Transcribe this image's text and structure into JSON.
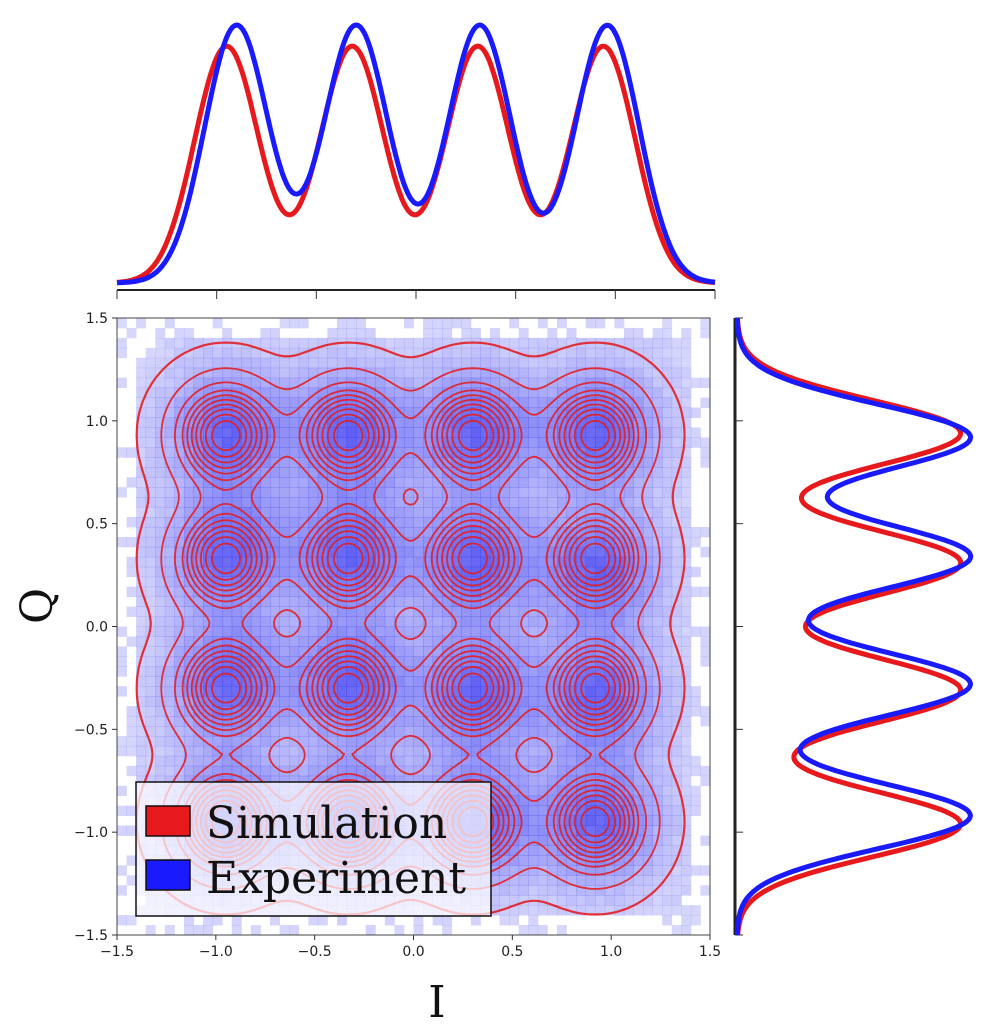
{
  "chart_data": {
    "type": "heatmap",
    "xlabel": "I",
    "ylabel": "Q",
    "xlim": [
      -1.5,
      1.5
    ],
    "ylim": [
      -1.5,
      1.5
    ],
    "x_ticks": [
      "−1.5",
      "−1.0",
      "−0.5",
      "0.0",
      "0.5",
      "1.0",
      "1.5"
    ],
    "y_ticks": [
      "−1.5",
      "−1.0",
      "−0.5",
      "0.0",
      "0.5",
      "1.0",
      "1.5"
    ],
    "tick_values": [
      -1.5,
      -1.0,
      -0.5,
      0.0,
      0.5,
      1.0,
      1.5
    ],
    "grid": false,
    "legend_position": "lower-left",
    "series": [
      {
        "name": "Simulation",
        "color": "#e8191d"
      },
      {
        "name": "Experiment",
        "color": "#1a1aff"
      }
    ],
    "constellation": {
      "experiment_peaks": [
        [
          -0.93,
          0.95
        ],
        [
          -0.31,
          0.95
        ],
        [
          0.32,
          0.95
        ],
        [
          0.94,
          0.95
        ],
        [
          -0.93,
          0.36
        ],
        [
          -0.31,
          0.36
        ],
        [
          0.32,
          0.32
        ],
        [
          0.94,
          0.28
        ],
        [
          -0.93,
          -0.27
        ],
        [
          -0.31,
          -0.27
        ],
        [
          0.32,
          -0.32
        ],
        [
          0.94,
          -0.34
        ],
        [
          -0.93,
          -0.95
        ],
        [
          -0.31,
          -0.95
        ],
        [
          0.32,
          -0.95
        ],
        [
          0.94,
          -0.95
        ]
      ],
      "simulation_peaks": [
        [
          -0.95,
          0.93
        ],
        [
          -0.33,
          0.93
        ],
        [
          0.3,
          0.93
        ],
        [
          0.92,
          0.93
        ],
        [
          -0.95,
          0.33
        ],
        [
          -0.33,
          0.33
        ],
        [
          0.3,
          0.33
        ],
        [
          0.92,
          0.33
        ],
        [
          -0.95,
          -0.3
        ],
        [
          -0.33,
          -0.3
        ],
        [
          0.3,
          -0.3
        ],
        [
          0.92,
          -0.3
        ],
        [
          -0.95,
          -0.95
        ],
        [
          -0.33,
          -0.95
        ],
        [
          0.3,
          -0.95
        ],
        [
          0.92,
          -0.95
        ]
      ]
    },
    "marginal_I": {
      "simulation_peaks": [
        -0.95,
        -0.32,
        0.31,
        0.94
      ],
      "experiment_peaks": [
        -0.9,
        -0.3,
        0.32,
        0.96
      ]
    },
    "marginal_Q": {
      "simulation_peaks": [
        0.94,
        0.31,
        -0.31,
        -0.96
      ],
      "experiment_peaks": [
        0.92,
        0.34,
        -0.28,
        -0.92
      ]
    }
  }
}
